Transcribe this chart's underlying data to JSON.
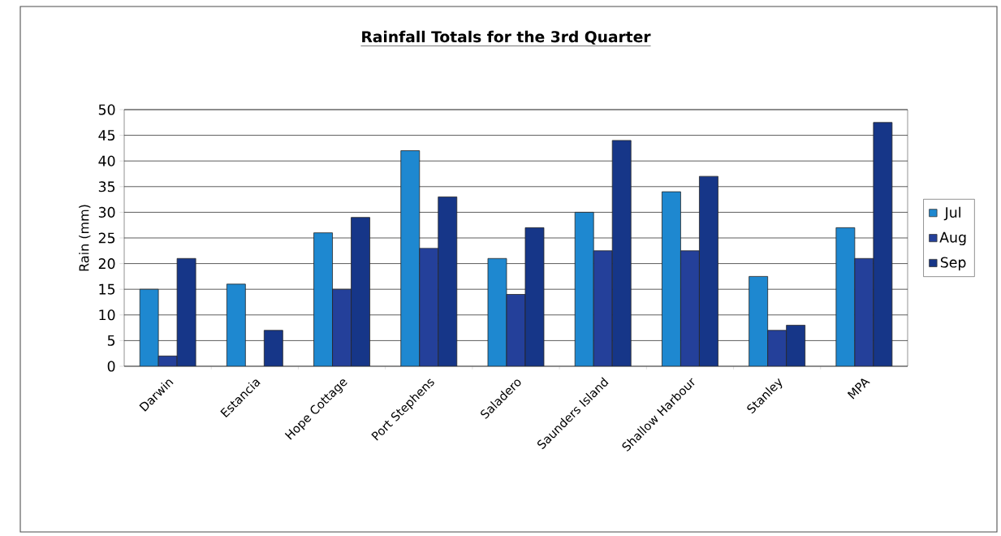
{
  "chart_data": {
    "type": "bar",
    "title": "Rainfall Totals for the 3rd Quarter",
    "ylabel": "Rain (mm)",
    "categories": [
      "Darwin",
      "Estancia",
      "Hope Cottage",
      "Port Stephens",
      "Saladero",
      "Saunders Island",
      "Shallow Harbour",
      "Stanley",
      "MPA"
    ],
    "series": [
      {
        "name": "Jul",
        "color": "#1e88d0",
        "values": [
          15,
          16,
          26,
          42,
          21,
          30,
          34,
          17.5,
          27
        ]
      },
      {
        "name": "Aug",
        "color": "#24409a",
        "values": [
          2,
          null,
          15,
          23,
          14,
          22.5,
          22.5,
          7,
          21
        ]
      },
      {
        "name": "Sep",
        "color": "#163688",
        "values": [
          21,
          7,
          29,
          33,
          27,
          44,
          37,
          8,
          47.5
        ]
      }
    ],
    "ylim": [
      0,
      50
    ],
    "yticks": [
      0,
      5,
      10,
      15,
      20,
      25,
      30,
      35,
      40,
      45,
      50
    ],
    "grid": "y",
    "legend": "right"
  }
}
